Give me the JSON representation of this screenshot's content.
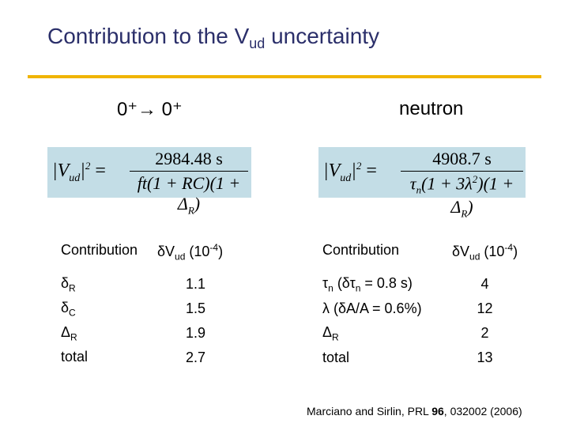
{
  "title": {
    "text": "Contribution to the V",
    "sub": "ud",
    "rest": " uncertainty"
  },
  "left": {
    "heading": "0⁺→ 0⁺",
    "formula": {
      "lhs_v": "|V",
      "lhs_sub": "ud",
      "lhs_close": "|",
      "lhs_sup": "2",
      "equals": " =",
      "numerator": "2984.48 s",
      "denominator": "ft(1 + RC)(1 + Δ",
      "denominator_sub": "R",
      "denominator_close": ")"
    },
    "table": {
      "header_contribution": "Contribution",
      "header_dv": "δV",
      "header_dv_sub": "ud",
      "header_unit": " (10",
      "header_unit_sup": "-4",
      "header_unit_close": ")",
      "rows": [
        {
          "sym": "δ",
          "sub": "R",
          "value": "1.1"
        },
        {
          "sym": "δ",
          "sub": "C",
          "value": "1.5"
        },
        {
          "sym": "Δ",
          "sub": "R",
          "value": "1.9"
        },
        {
          "sym": "total",
          "sub": "",
          "value": "2.7"
        }
      ]
    }
  },
  "right": {
    "heading": "neutron",
    "formula": {
      "lhs_v": "|V",
      "lhs_sub": "ud",
      "lhs_close": "|",
      "lhs_sup": "2",
      "equals": " =",
      "numerator": "4908.7 s",
      "den_tau": "τ",
      "den_tau_sub": "n",
      "den_mid": "(1 + 3λ",
      "den_mid_sup": "2",
      "den_rest": ")(1 + Δ",
      "den_rest_sub": "R",
      "den_close": ")"
    },
    "table": {
      "header_contribution": "Contribution",
      "header_dv": "δV",
      "header_dv_sub": "ud",
      "header_unit": " (10",
      "header_unit_sup": "-4",
      "header_unit_close": ")",
      "rows": [
        {
          "pre": "τ",
          "pre_sub": "n",
          "post": " (δτ",
          "post_sub": "n",
          "tail": " = 0.8 s)",
          "value": "4"
        },
        {
          "pre": "λ (δA/A = 0.6%)",
          "pre_sub": "",
          "post": "",
          "post_sub": "",
          "tail": "",
          "value": "12"
        },
        {
          "pre": "Δ",
          "pre_sub": "R",
          "post": "",
          "post_sub": "",
          "tail": "",
          "value": "2"
        },
        {
          "pre": "total",
          "pre_sub": "",
          "post": "",
          "post_sub": "",
          "tail": "",
          "value": "13"
        }
      ]
    }
  },
  "citation": {
    "text": "Marciano and Sirlin, PRL ",
    "bold": "96",
    "rest": ", 032002 (2006)"
  }
}
